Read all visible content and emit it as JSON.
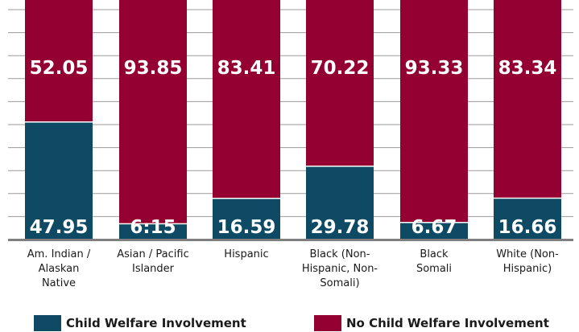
{
  "chart_data": {
    "type": "bar",
    "stacked": true,
    "percent": true,
    "ylim": [
      0,
      100
    ],
    "grid": true,
    "legend_position": "bottom",
    "categories": [
      "Am. Indian / Alaskan Native",
      "Asian / Pacific Islander",
      "Hispanic",
      "Black (Non-Hispanic, Non-Somali)",
      "Black Somali",
      "White (Non-Hispanic)"
    ],
    "series": [
      {
        "name": "Child Welfare Involvement",
        "color": "#0e4a63",
        "values": [
          47.95,
          6.15,
          16.59,
          29.78,
          6.67,
          16.66
        ],
        "labels": [
          "47.95",
          "6:15",
          "16.59",
          "29.78",
          "6.67",
          "16.66"
        ]
      },
      {
        "name": "No Child Welfare Involvement",
        "color": "#930031",
        "values": [
          52.05,
          93.85,
          83.41,
          70.22,
          93.33,
          83.34
        ],
        "labels": [
          "52.05",
          "93.85",
          "83.41",
          "70.22",
          "93.33",
          "83.34"
        ]
      }
    ]
  },
  "category_label_lines": [
    [
      "Am. Indian /",
      "Alaskan",
      "Native"
    ],
    [
      "Asian / Pacific",
      "Islander"
    ],
    [
      "Hispanic"
    ],
    [
      "Black (Non-",
      "Hispanic, Non-",
      "Somali)"
    ],
    [
      "Black",
      "Somali"
    ],
    [
      "White (Non-",
      "Hispanic)"
    ]
  ]
}
